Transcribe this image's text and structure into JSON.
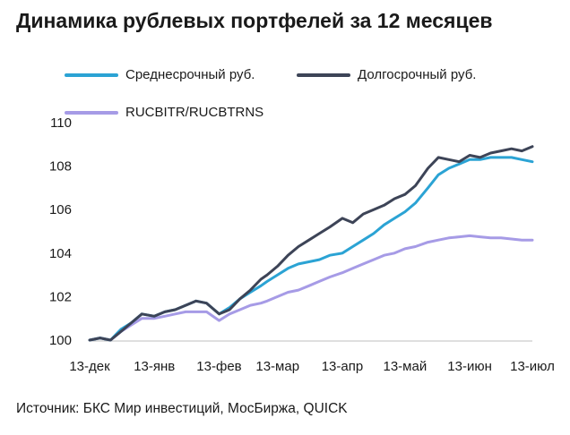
{
  "chart_data": {
    "type": "line",
    "title": "Динамика рублевых портфелей за 12 месяцев",
    "source": "Источник: БКС Мир инвестиций, МосБиржа, QUICK",
    "xlabel": "",
    "ylabel": "",
    "ylim": [
      100,
      110
    ],
    "yticks": [
      "100",
      "102",
      "104",
      "106",
      "108",
      "110"
    ],
    "xticks": [
      "13-дек",
      "13-янв",
      "13-фев",
      "13-мар",
      "13-апр",
      "13-май",
      "13-июн",
      "13-июл"
    ],
    "grid": false,
    "legend_position": "top",
    "x_days": [
      0,
      5,
      10,
      15,
      20,
      25,
      31,
      36,
      41,
      46,
      51,
      56,
      62,
      67,
      72,
      77,
      82,
      85,
      90,
      95,
      100,
      105,
      110,
      115,
      121,
      126,
      131,
      136,
      141,
      146,
      151,
      156,
      162,
      167,
      172,
      177,
      182,
      187,
      192,
      197,
      202,
      207,
      212
    ],
    "series": [
      {
        "name": "Среднесрочный руб.",
        "color": "#2ba3d4",
        "values": [
          100.0,
          100.1,
          100.0,
          100.5,
          100.8,
          101.2,
          101.1,
          101.3,
          101.4,
          101.6,
          101.8,
          101.7,
          101.2,
          101.5,
          101.9,
          102.2,
          102.5,
          102.7,
          103.0,
          103.3,
          103.5,
          103.6,
          103.7,
          103.9,
          104.0,
          104.3,
          104.6,
          104.9,
          105.3,
          105.6,
          105.9,
          106.3,
          107.0,
          107.6,
          107.9,
          108.1,
          108.3,
          108.3,
          108.4,
          108.4,
          108.4,
          108.3,
          108.2
        ]
      },
      {
        "name": "Долгосрочный руб.",
        "color": "#3d4457",
        "values": [
          100.0,
          100.1,
          100.0,
          100.4,
          100.8,
          101.2,
          101.1,
          101.3,
          101.4,
          101.6,
          101.8,
          101.7,
          101.2,
          101.4,
          101.9,
          102.3,
          102.8,
          103.0,
          103.4,
          103.9,
          104.3,
          104.6,
          104.9,
          105.2,
          105.6,
          105.4,
          105.8,
          106.0,
          106.2,
          106.5,
          106.7,
          107.1,
          107.9,
          108.4,
          108.3,
          108.2,
          108.5,
          108.4,
          108.6,
          108.7,
          108.8,
          108.7,
          108.9
        ]
      },
      {
        "name": "RUCBITR/RUCBTRNS",
        "color": "#a69be6",
        "values": [
          100.0,
          100.1,
          100.0,
          100.4,
          100.7,
          101.0,
          101.0,
          101.1,
          101.2,
          101.3,
          101.3,
          101.3,
          100.9,
          101.2,
          101.4,
          101.6,
          101.7,
          101.8,
          102.0,
          102.2,
          102.3,
          102.5,
          102.7,
          102.9,
          103.1,
          103.3,
          103.5,
          103.7,
          103.9,
          104.0,
          104.2,
          104.3,
          104.5,
          104.6,
          104.7,
          104.75,
          104.8,
          104.75,
          104.7,
          104.7,
          104.65,
          104.6,
          104.6
        ]
      }
    ]
  }
}
